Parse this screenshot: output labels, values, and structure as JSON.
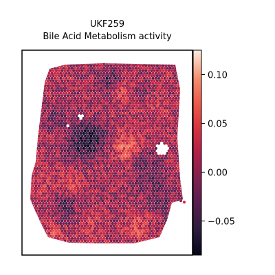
{
  "chart_data": {
    "type": "scatter",
    "title": "UKF259",
    "subtitle": "Bile Acid Metabolism activity",
    "xlabel": "",
    "ylabel": "",
    "colorbar": {
      "colormap": "rocket",
      "min": -0.085,
      "max": 0.125,
      "ticks": [
        0.1,
        0.05,
        0.0,
        -0.05
      ],
      "tick_labels": [
        "0.10",
        "0.05",
        "0.00",
        "−0.05"
      ]
    },
    "axes_ticks_visible": false,
    "grid": false,
    "legend": "none",
    "points": "hexagonal spot grid covering the tissue section; colour encodes activity score between -0.085 and 0.125"
  }
}
